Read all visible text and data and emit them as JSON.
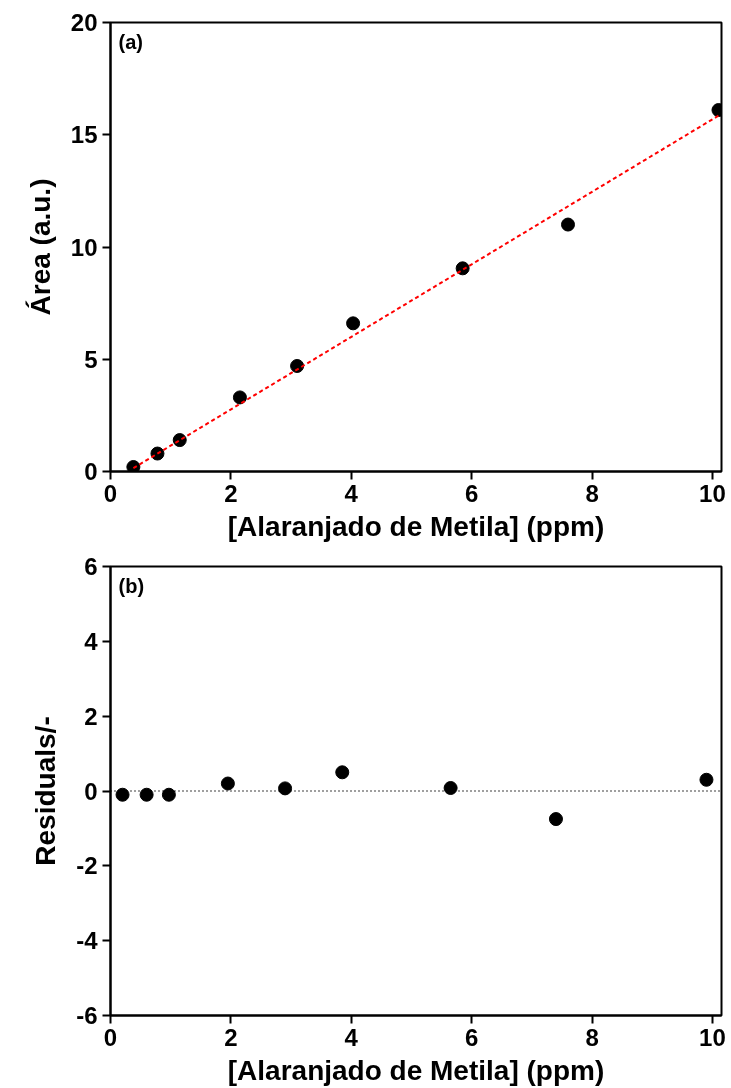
{
  "chart_data": [
    {
      "type": "scatter",
      "xlabel": "[Alaranjado de Metila] (ppm)",
      "ylabel": "Área (a.u.)",
      "annotations": [
        "(a)"
      ],
      "xlim": [
        0,
        10.15
      ],
      "ylim": [
        0,
        20
      ],
      "xticks": [
        0,
        2,
        4,
        6,
        8,
        10
      ],
      "yticks": [
        0,
        5,
        10,
        15,
        20
      ],
      "grid": false,
      "series": [
        {
          "marker": "circle",
          "color": "#000000",
          "x": [
            0.38,
            0.78,
            1.15,
            2.15,
            3.1,
            4.03,
            5.85,
            7.6,
            10.1
          ],
          "values": [
            0.2,
            0.8,
            1.4,
            3.3,
            4.7,
            6.6,
            9.05,
            11.0,
            16.1
          ]
        },
        {
          "type": "line",
          "line_style": "dashed",
          "color": "#ff0000",
          "x": [
            0.38,
            10.1
          ],
          "values": [
            0.15,
            15.85
          ]
        }
      ]
    },
    {
      "type": "scatter",
      "xlabel": "[Alaranjado de Metila] (ppm)",
      "ylabel": "Residuals/-",
      "annotations": [
        "(b)"
      ],
      "xlim": [
        0,
        10.15
      ],
      "ylim": [
        -6,
        6
      ],
      "xticks": [
        0,
        2,
        4,
        6,
        8,
        10
      ],
      "yticks": [
        -6,
        -4,
        -2,
        0,
        2,
        4,
        6
      ],
      "grid": false,
      "ref_lines": [
        {
          "axis": "y",
          "value": 0,
          "color": "#000000",
          "line_style": "dotted"
        }
      ],
      "series": [
        {
          "marker": "circle",
          "color": "#000000",
          "x": [
            0.2,
            0.6,
            0.97,
            1.95,
            2.9,
            3.85,
            5.65,
            7.4,
            9.9
          ],
          "values": [
            -0.1,
            -0.1,
            -0.1,
            0.2,
            0.07,
            0.5,
            0.08,
            -0.75,
            0.3
          ]
        }
      ]
    }
  ]
}
